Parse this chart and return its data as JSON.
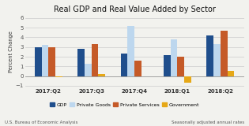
{
  "title": "Real GDP and Real Value Added by Sector",
  "ylabel": "Percent Change",
  "categories": [
    "2017:Q2",
    "2017:Q3",
    "2017:Q4",
    "2018:Q1",
    "2018:Q2"
  ],
  "series": {
    "GDP": [
      3.0,
      2.8,
      2.3,
      2.2,
      4.2
    ],
    "Private Goods": [
      3.2,
      1.3,
      5.2,
      3.8,
      3.3
    ],
    "Private Services": [
      3.0,
      3.3,
      1.6,
      2.0,
      4.7
    ],
    "Government": [
      -0.1,
      0.25,
      -0.05,
      -0.7,
      0.5
    ]
  },
  "colors": {
    "GDP": "#1f4e8c",
    "Private Goods": "#bdd7ee",
    "Private Services": "#c55a28",
    "Government": "#e6a817"
  },
  "ylim": [
    -1.25,
    6.3
  ],
  "yticks": [
    -1,
    0,
    1,
    2,
    3,
    4,
    5,
    6
  ],
  "footnote_left": "U.S. Bureau of Economic Analysis",
  "footnote_right": "Seasonally adjusted annual rates",
  "background_color": "#f2f2ee"
}
